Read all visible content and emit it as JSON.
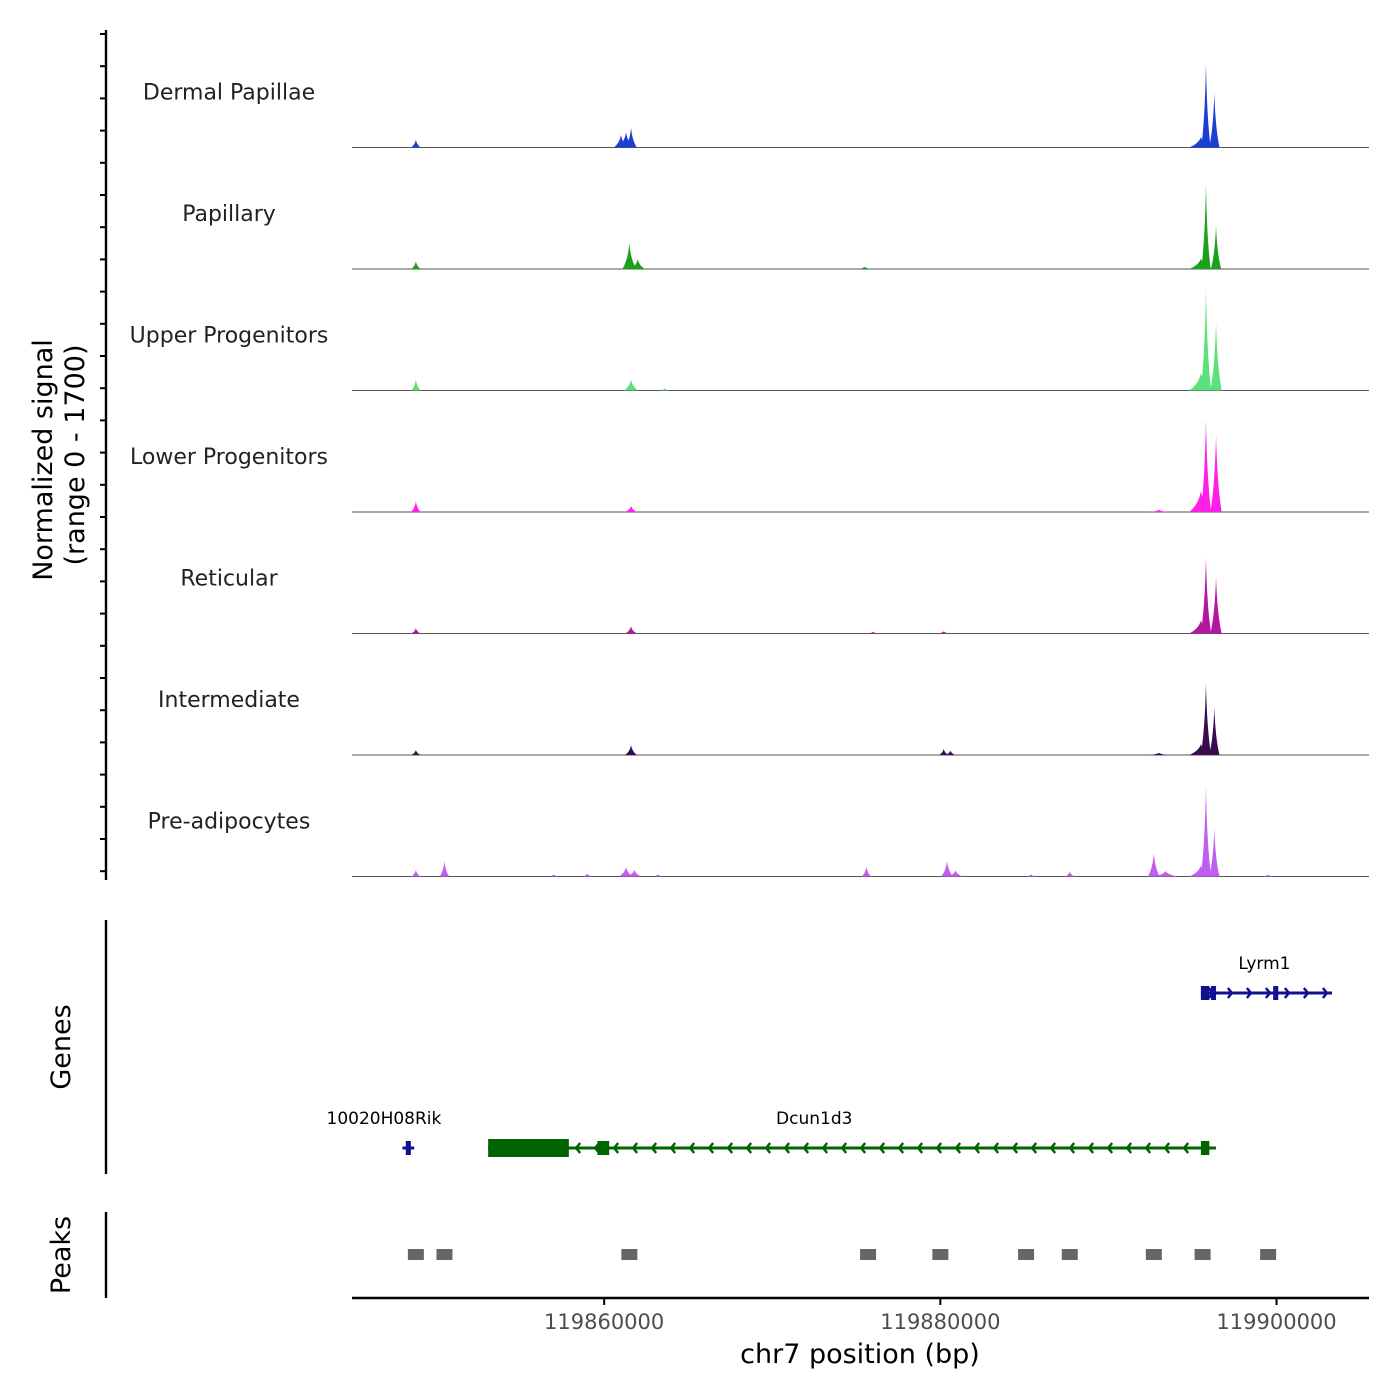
{
  "chart_data": {
    "type": "area",
    "title": "",
    "ylabel_line1": "Normalized signal",
    "ylabel_line2": "(range 0 - 1700)",
    "ylim": [
      0,
      1700
    ],
    "xlabel": "chr7 position (bp)",
    "xlim": [
      119845000,
      119905500
    ],
    "xticks": [
      119860000,
      119880000,
      119900000
    ],
    "xtick_labels": [
      "119860000",
      "119880000",
      "119900000"
    ],
    "tracks": [
      {
        "name": "Dermal Papillae",
        "color": "#1a3fd1",
        "peaks": [
          [
            119848800,
            200,
            140
          ],
          [
            119861000,
            300,
            230
          ],
          [
            119861300,
            350,
            270
          ],
          [
            119861600,
            250,
            360
          ],
          [
            119895500,
            500,
            190
          ],
          [
            119895800,
            200,
            1560
          ],
          [
            119896300,
            220,
            1000
          ]
        ]
      },
      {
        "name": "Papillary",
        "color": "#1aa21a",
        "peaks": [
          [
            119848800,
            200,
            140
          ],
          [
            119861500,
            300,
            470
          ],
          [
            119862000,
            300,
            180
          ],
          [
            119875500,
            300,
            40
          ],
          [
            119895500,
            500,
            190
          ],
          [
            119895800,
            200,
            1560
          ],
          [
            119896400,
            220,
            800
          ]
        ]
      },
      {
        "name": "Upper Progenitors",
        "color": "#5ce07a",
        "peaks": [
          [
            119848800,
            200,
            200
          ],
          [
            119861600,
            300,
            200
          ],
          [
            119863600,
            200,
            40
          ],
          [
            119895500,
            500,
            320
          ],
          [
            119895800,
            220,
            1880
          ],
          [
            119896400,
            240,
            1260
          ]
        ]
      },
      {
        "name": "Lower Progenitors",
        "color": "#ff1fe8",
        "peaks": [
          [
            119848800,
            200,
            200
          ],
          [
            119861600,
            250,
            110
          ],
          [
            119895500,
            500,
            380
          ],
          [
            119895800,
            220,
            1700
          ],
          [
            119896400,
            240,
            1420
          ],
          [
            119893000,
            400,
            40
          ]
        ]
      },
      {
        "name": "Reticular",
        "color": "#b4169c",
        "peaks": [
          [
            119848800,
            200,
            100
          ],
          [
            119861600,
            250,
            130
          ],
          [
            119876000,
            250,
            30
          ],
          [
            119880200,
            250,
            40
          ],
          [
            119895500,
            500,
            240
          ],
          [
            119895800,
            220,
            1400
          ],
          [
            119896400,
            240,
            1040
          ]
        ]
      },
      {
        "name": "Intermediate",
        "color": "#3b0b4f",
        "peaks": [
          [
            119848800,
            200,
            90
          ],
          [
            119861600,
            250,
            180
          ],
          [
            119880200,
            200,
            110
          ],
          [
            119880600,
            200,
            80
          ],
          [
            119893000,
            400,
            40
          ],
          [
            119895500,
            500,
            200
          ],
          [
            119895800,
            220,
            1320
          ],
          [
            119896300,
            220,
            880
          ]
        ]
      },
      {
        "name": "Pre-adipocytes",
        "color": "#c05ef0",
        "peaks": [
          [
            119848800,
            200,
            120
          ],
          [
            119850500,
            200,
            280
          ],
          [
            119857000,
            200,
            40
          ],
          [
            119859000,
            200,
            50
          ],
          [
            119861300,
            300,
            170
          ],
          [
            119861800,
            300,
            120
          ],
          [
            119863200,
            200,
            40
          ],
          [
            119875600,
            200,
            180
          ],
          [
            119880400,
            250,
            280
          ],
          [
            119880900,
            300,
            110
          ],
          [
            119887700,
            200,
            90
          ],
          [
            119885400,
            200,
            40
          ],
          [
            119892700,
            250,
            430
          ],
          [
            119893400,
            500,
            100
          ],
          [
            119895500,
            500,
            200
          ],
          [
            119895800,
            220,
            1660
          ],
          [
            119896300,
            220,
            880
          ],
          [
            119899500,
            300,
            30
          ]
        ]
      }
    ],
    "genes": [
      {
        "name": "Lyrm1",
        "strand": "+",
        "start": 119895500,
        "end": 119903300,
        "row": 0,
        "color": "#101090",
        "exons": [
          [
            119895500,
            119896000
          ],
          [
            119896100,
            119896400
          ],
          [
            119899800,
            119900100
          ]
        ]
      },
      {
        "name": "10020H08Rik",
        "strand": "+",
        "start": 119848000,
        "end": 119848700,
        "row": 1,
        "color": "#101090",
        "exons": [
          [
            119848200,
            119848500
          ]
        ]
      },
      {
        "name": "Dcun1d3",
        "strand": "-",
        "start": 119853100,
        "end": 119896400,
        "row": 1,
        "color": "#006400",
        "exons": [
          [
            119853100,
            119857900
          ],
          [
            119859600,
            119860300
          ],
          [
            119895500,
            119896000
          ]
        ]
      }
    ],
    "peaks": [
      119848800,
      119850500,
      119861500,
      119875700,
      119880000,
      119885100,
      119887700,
      119892700,
      119895600,
      119899500
    ],
    "genes_panel_label": "Genes",
    "peaks_panel_label": "Peaks"
  }
}
